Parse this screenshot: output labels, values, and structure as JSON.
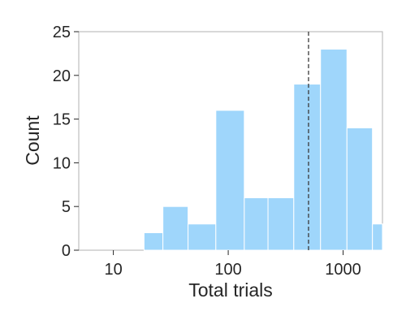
{
  "chart_data": {
    "type": "bar",
    "subtype": "histogram",
    "title": "",
    "xlabel": "Total trials",
    "ylabel": "Count",
    "x_scale": "log",
    "xlim": [
      5,
      2200
    ],
    "ylim": [
      0,
      25
    ],
    "x_ticks": [
      10,
      100,
      1000
    ],
    "x_tick_labels": [
      "10",
      "100",
      "1000"
    ],
    "y_ticks": [
      0,
      5,
      10,
      15,
      20,
      25
    ],
    "y_tick_labels": [
      "0",
      "5",
      "10",
      "15",
      "20",
      "25"
    ],
    "grid": false,
    "legend": "none",
    "bar_color": "#9fd6fb",
    "reference_line": {
      "x": 500,
      "style": "dashed",
      "color": "#3a3a3a"
    },
    "bins": [
      {
        "x_start": 18.5,
        "x_end": 27.0,
        "count": 2
      },
      {
        "x_start": 27.0,
        "x_end": 44.7,
        "count": 5
      },
      {
        "x_start": 44.7,
        "x_end": 78.0,
        "count": 3
      },
      {
        "x_start": 78.0,
        "x_end": 138,
        "count": 16
      },
      {
        "x_start": 138,
        "x_end": 222,
        "count": 6
      },
      {
        "x_start": 222,
        "x_end": 372,
        "count": 6
      },
      {
        "x_start": 372,
        "x_end": 636,
        "count": 19
      },
      {
        "x_start": 636,
        "x_end": 1080,
        "count": 23
      },
      {
        "x_start": 1080,
        "x_end": 1800,
        "count": 14
      },
      {
        "x_start": 1800,
        "x_end": 2200,
        "count": 3
      }
    ]
  }
}
